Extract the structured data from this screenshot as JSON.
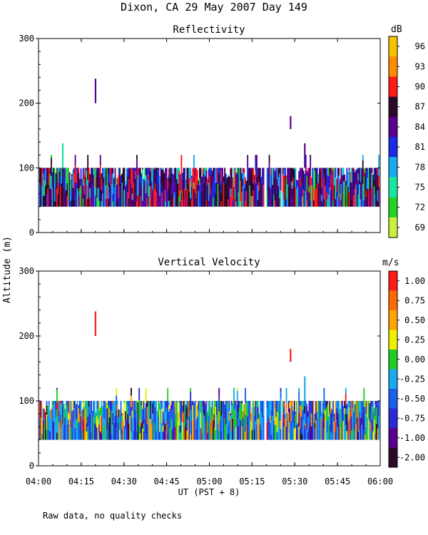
{
  "title": "Dixon, CA 29 May 2007  Day 149",
  "y_axis_label": "Altitude (m)",
  "x_axis_label": "UT  (PST + 8)",
  "footnote": "Raw data, no quality checks",
  "chart_data": [
    {
      "type": "heatmap",
      "title": "Reflectivity",
      "xlabel": "UT  (PST + 8)",
      "ylabel": "Altitude (m)",
      "x_ticks": [
        "04:00",
        "04:15",
        "04:30",
        "04:45",
        "05:00",
        "05:15",
        "05:30",
        "05:45",
        "06:00"
      ],
      "xlim_minutes": [
        0,
        120
      ],
      "y_ticks": [
        "0",
        "100",
        "200",
        "300"
      ],
      "ylim": [
        0,
        300
      ],
      "colorbar": {
        "unit": "dB",
        "labels": [
          "96",
          "93",
          "90",
          "87",
          "84",
          "81",
          "78",
          "75",
          "72",
          "69"
        ],
        "colors": [
          "#f5c400",
          "#ff8c00",
          "#ff1a1a",
          "#2a0a2a",
          "#5a0090",
          "#1a2ae6",
          "#18aaf0",
          "#1ae6a0",
          "#22d422",
          "#c8f03c"
        ]
      },
      "echo_layer": {
        "base_m": 40,
        "top_m": 100,
        "sparse_top_m": 120
      },
      "gaps_minutes": [
        [
          0,
          0
        ],
        [
          79,
          80
        ],
        [
          85,
          85.5
        ]
      ],
      "plumes": [
        {
          "t_min": 20,
          "bottom_m": 200,
          "top_m": 238,
          "color_index": 4
        },
        {
          "t_min": 88.5,
          "bottom_m": 160,
          "top_m": 180,
          "color_index": 4
        },
        {
          "t_min": 93.5,
          "bottom_m": 100,
          "top_m": 138,
          "color_index": 4
        },
        {
          "t_min": 8.5,
          "bottom_m": 100,
          "top_m": 138,
          "color_index": 7
        }
      ]
    },
    {
      "type": "heatmap",
      "title": "Vertical Velocity",
      "xlabel": "UT  (PST + 8)",
      "ylabel": "Altitude (m)",
      "x_ticks": [
        "04:00",
        "04:15",
        "04:30",
        "04:45",
        "05:00",
        "05:15",
        "05:30",
        "05:45",
        "06:00"
      ],
      "xlim_minutes": [
        0,
        120
      ],
      "y_ticks": [
        "0",
        "100",
        "200",
        "300"
      ],
      "ylim": [
        0,
        300
      ],
      "colorbar": {
        "unit": "m/s",
        "labels": [
          "1.00",
          "0.75",
          "0.50",
          "0.25",
          "0.00",
          "-0.25",
          "-0.50",
          "-0.75",
          "-1.00",
          "-2.00"
        ],
        "colors": [
          "#ff1a1a",
          "#ff6a00",
          "#ffa500",
          "#f0f000",
          "#22cc22",
          "#18aaf0",
          "#1a60f0",
          "#2a2ad4",
          "#5a0090",
          "#2a0a2a"
        ]
      },
      "echo_layer": {
        "base_m": 40,
        "top_m": 100,
        "sparse_top_m": 120
      },
      "gaps_minutes": [
        [
          79,
          80
        ],
        [
          85,
          85.5
        ]
      ],
      "plumes": [
        {
          "t_min": 20,
          "bottom_m": 200,
          "top_m": 238,
          "color_index": 0
        },
        {
          "t_min": 88.5,
          "bottom_m": 160,
          "top_m": 180,
          "color_index": 0
        },
        {
          "t_min": 93.5,
          "bottom_m": 100,
          "top_m": 138,
          "color_index": 5
        }
      ]
    }
  ]
}
